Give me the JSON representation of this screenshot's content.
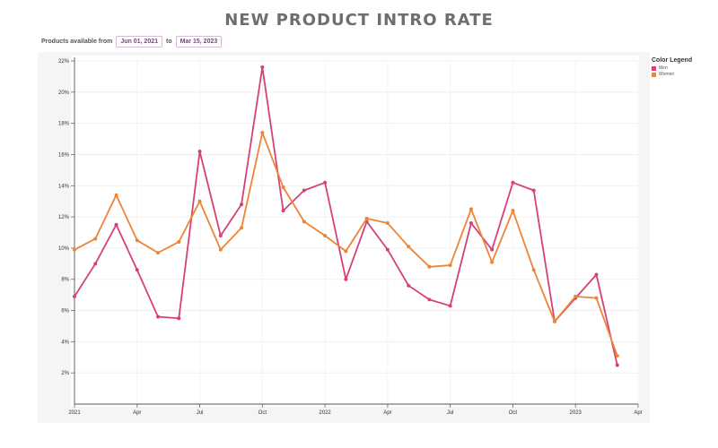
{
  "title": "NEW PRODUCT INTRO RATE",
  "filter": {
    "prefix": "Products available from",
    "from": "Jun 01, 2021",
    "to_label": "to",
    "to": "Mar 15, 2023"
  },
  "legend": {
    "title": "Color Legend",
    "items": [
      {
        "label": "Men",
        "color": "#d6407a"
      },
      {
        "label": "Women",
        "color": "#ee8434"
      }
    ]
  },
  "chart_data": {
    "type": "line",
    "x_ticks": [
      "2021",
      "Apr",
      "Jul",
      "Oct",
      "2022",
      "Apr",
      "Jul",
      "Oct",
      "2023",
      "Apr"
    ],
    "y_ticks": [
      "2%",
      "4%",
      "6%",
      "8%",
      "10%",
      "12%",
      "14%",
      "16%",
      "18%",
      "20%",
      "22%"
    ],
    "ylim": [
      0,
      22
    ],
    "x_points": [
      "2021-01",
      "2021-02",
      "2021-03",
      "2021-04",
      "2021-05",
      "2021-06",
      "2021-07",
      "2021-08",
      "2021-09",
      "2021-10",
      "2021-11",
      "2021-12",
      "2022-01",
      "2022-02",
      "2022-03",
      "2022-04",
      "2022-05",
      "2022-06",
      "2022-07",
      "2022-08",
      "2022-09",
      "2022-10",
      "2022-11",
      "2022-12",
      "2023-01",
      "2023-02",
      "2023-03"
    ],
    "series": [
      {
        "name": "Men",
        "color": "#d6407a",
        "values": [
          6.9,
          9.0,
          11.5,
          8.6,
          5.6,
          5.5,
          16.2,
          10.8,
          12.8,
          21.6,
          12.4,
          13.7,
          14.2,
          8.0,
          11.7,
          9.9,
          7.6,
          6.7,
          6.3,
          11.6,
          9.9,
          14.2,
          13.7,
          5.3,
          6.8,
          8.3,
          2.5
        ]
      },
      {
        "name": "Women",
        "color": "#ee8434",
        "values": [
          9.9,
          10.6,
          13.4,
          10.5,
          9.7,
          10.4,
          13.0,
          9.9,
          11.3,
          17.4,
          13.9,
          11.7,
          10.8,
          9.8,
          11.9,
          11.6,
          10.1,
          8.8,
          8.9,
          12.5,
          9.1,
          12.4,
          8.6,
          5.3,
          6.9,
          6.8,
          3.1
        ]
      }
    ]
  }
}
